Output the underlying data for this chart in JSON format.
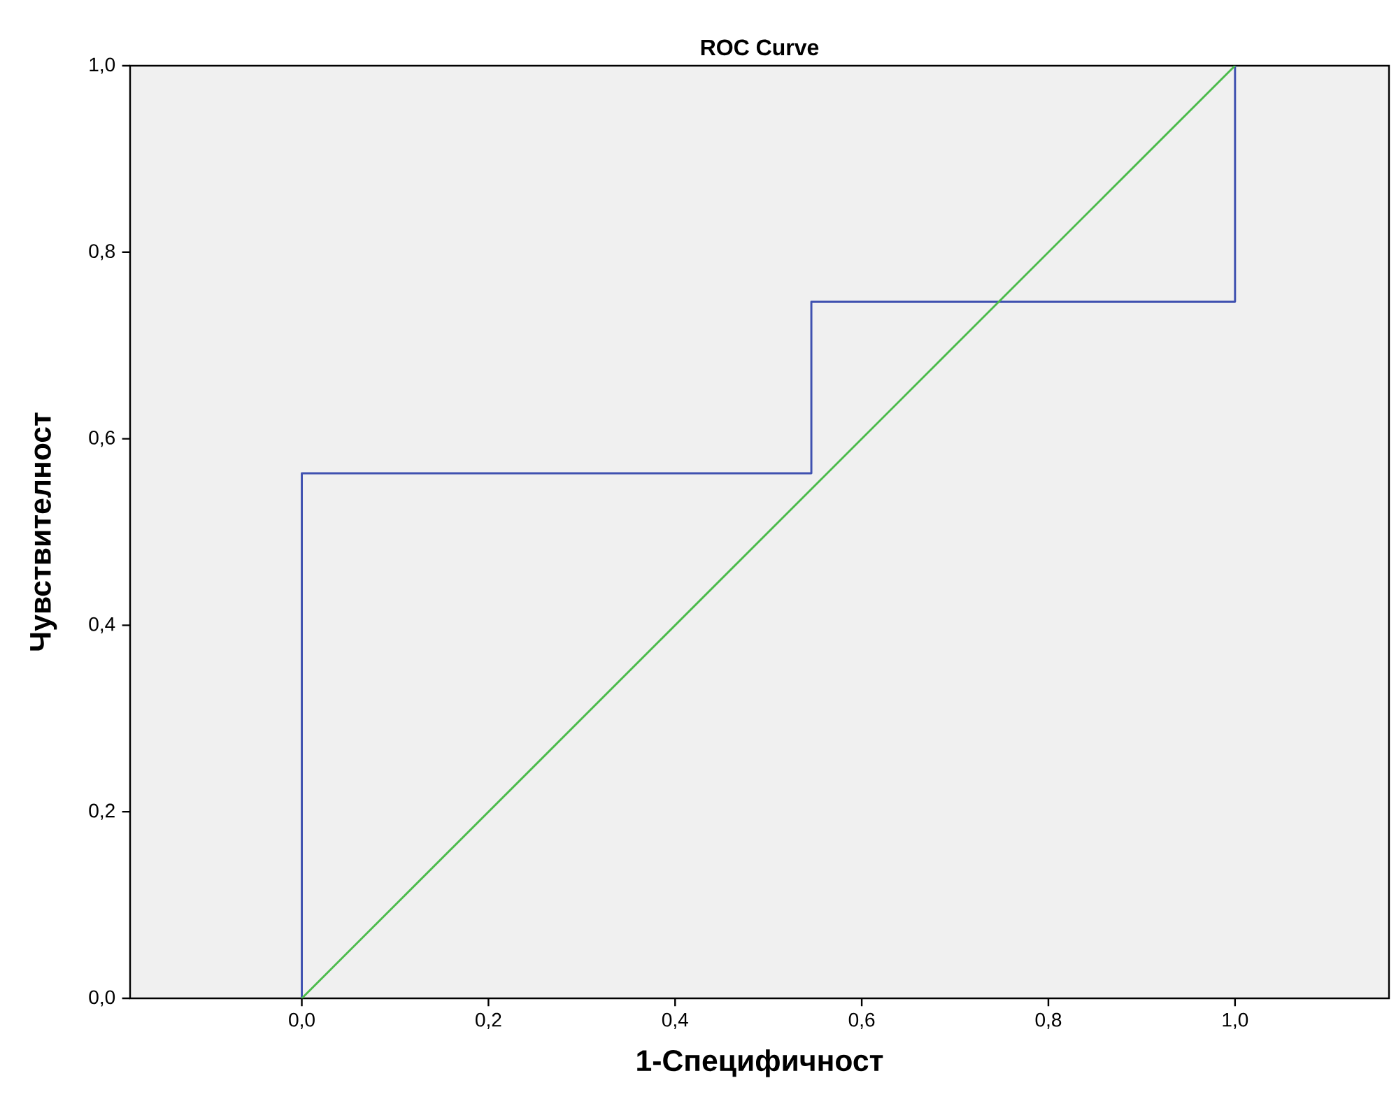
{
  "chart_data": {
    "type": "line",
    "title": "ROC Curve",
    "xlabel": "1-Специфичност",
    "ylabel": "Чувствителност",
    "xlim": [
      -0.184,
      1.165
    ],
    "ylim": [
      0,
      1
    ],
    "xticks": [
      {
        "value": 0,
        "label": "0,0"
      },
      {
        "value": 0.2,
        "label": "0,2"
      },
      {
        "value": 0.4,
        "label": "0,4"
      },
      {
        "value": 0.6,
        "label": "0,6"
      },
      {
        "value": 0.8,
        "label": "0,8"
      },
      {
        "value": 1,
        "label": "1,0"
      }
    ],
    "yticks": [
      {
        "value": 0,
        "label": "0,0"
      },
      {
        "value": 0.2,
        "label": "0,2"
      },
      {
        "value": 0.4,
        "label": "0,4"
      },
      {
        "value": 0.6,
        "label": "0,6"
      },
      {
        "value": 0.8,
        "label": "0,8"
      },
      {
        "value": 1,
        "label": "1,0"
      }
    ],
    "grid": false,
    "legend": false,
    "marker": "none",
    "series": [
      {
        "color": "#3f51b0",
        "x": [
          0,
          0,
          0.546,
          0.546,
          1,
          1
        ],
        "values": [
          0,
          0.563,
          0.563,
          0.747,
          0.747,
          1
        ]
      },
      {
        "color": "#4cbb4c",
        "x": [
          0,
          1
        ],
        "values": [
          0,
          1
        ]
      }
    ]
  }
}
